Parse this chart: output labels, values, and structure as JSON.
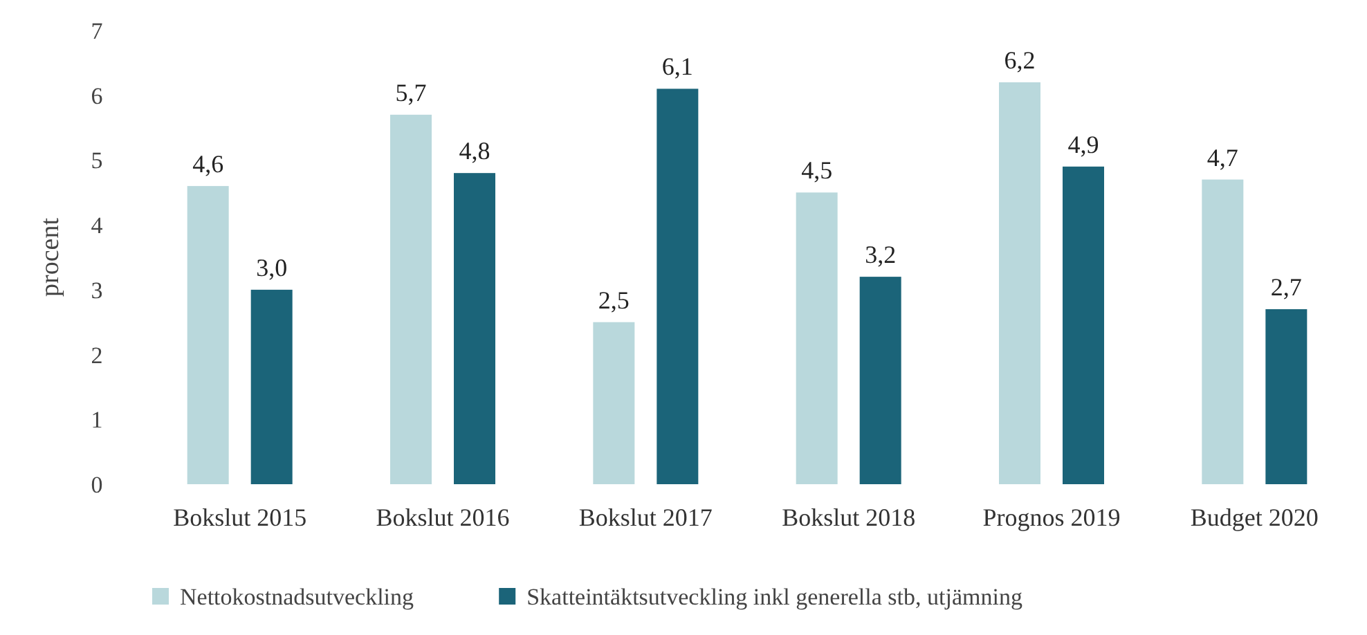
{
  "chart_data": {
    "type": "bar",
    "ylabel": "procent",
    "categories": [
      "Bokslut 2015",
      "Bokslut 2016",
      "Bokslut 2017",
      "Bokslut 2018",
      "Prognos 2019",
      "Budget 2020"
    ],
    "series": [
      {
        "name": "Nettokostnadsutveckling",
        "color": "#b9d8dc",
        "values": [
          4.6,
          5.7,
          2.5,
          4.5,
          6.2,
          4.7
        ],
        "value_labels": [
          "4,6",
          "5,7",
          "2,5",
          "4,5",
          "6,2",
          "4,7"
        ]
      },
      {
        "name": "Skatteintäktsutveckling inkl generella stb, utjämning",
        "color": "#1b6479",
        "values": [
          3.0,
          4.8,
          6.1,
          3.2,
          4.9,
          2.7
        ],
        "value_labels": [
          "3,0",
          "4,8",
          "6,1",
          "3,2",
          "4,9",
          "2,7"
        ]
      }
    ],
    "ylim": [
      0,
      7
    ],
    "yticks": [
      0,
      1,
      2,
      3,
      4,
      5,
      6,
      7
    ],
    "grid": false,
    "legend": "bottom"
  }
}
